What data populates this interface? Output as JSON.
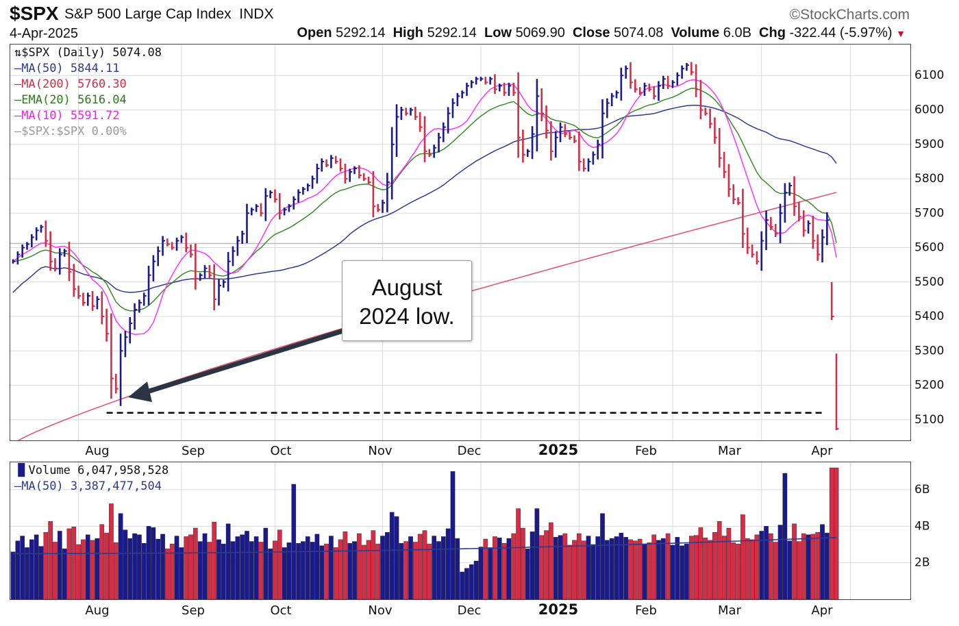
{
  "header": {
    "ticker": "$SPX",
    "index_name": "S&P 500 Large Cap Index",
    "exchange": "INDX",
    "brand": "©StockCharts.com",
    "date": "4-Apr-2025",
    "open_label": "Open",
    "open": "5292.14",
    "high_label": "High",
    "high": "5292.14",
    "low_label": "Low",
    "low": "5069.90",
    "close_label": "Close",
    "close": "5074.08",
    "volume_label": "Volume",
    "volume": "6.0B",
    "chg_label": "Chg",
    "chg": "-322.44 (-5.97%)"
  },
  "legend": {
    "price": "$SPX (Daily) 5074.08",
    "ma50": "MA(50) 5844.11",
    "ma200": "MA(200) 5760.30",
    "ema20": "EMA(20) 5616.04",
    "ma10": "MA(10) 5591.72",
    "ratio": "$SPX:$SPX 0.00%",
    "volume": "Volume 6,047,958,528",
    "vol_ma": "MA(50) 3,387,477,504"
  },
  "annotation": {
    "line1": "August",
    "line2": "2024 low."
  },
  "colors": {
    "up": "#1a1a8c",
    "down": "#d62c46",
    "ma50": "#2e3a8c",
    "ma200": "#e0506a",
    "ema20": "#3a8a2a",
    "ma10": "#ff33ff",
    "ratio": "#999999",
    "grid": "#d8d8d8"
  },
  "chart_data": [
    {
      "type": "candlestick",
      "title": "$SPX (Daily) 5074.08",
      "x_months": [
        "Aug",
        "Sep",
        "Oct",
        "Nov",
        "Dec",
        "2025",
        "Feb",
        "Mar",
        "Apr"
      ],
      "y_ticks": [
        5100,
        5200,
        5300,
        5400,
        5500,
        5600,
        5700,
        5800,
        5900,
        6000,
        6100
      ],
      "ylim": [
        5040,
        6190
      ],
      "reference_line": 5120,
      "closes": [
        5560,
        5580,
        5600,
        5610,
        5630,
        5650,
        5660,
        5620,
        5560,
        5540,
        5580,
        5590,
        5530,
        5480,
        5460,
        5440,
        5460,
        5430,
        5450,
        5400,
        5350,
        5220,
        5190,
        5300,
        5340,
        5380,
        5420,
        5440,
        5460,
        5520,
        5560,
        5590,
        5620,
        5610,
        5600,
        5620,
        5630,
        5600,
        5580,
        5510,
        5520,
        5540,
        5520,
        5450,
        5490,
        5500,
        5560,
        5590,
        5620,
        5640,
        5700,
        5710,
        5720,
        5700,
        5750,
        5760,
        5740,
        5700,
        5710,
        5720,
        5740,
        5760,
        5770,
        5780,
        5800,
        5830,
        5850,
        5840,
        5860,
        5850,
        5830,
        5800,
        5820,
        5830,
        5810,
        5800,
        5790,
        5720,
        5710,
        5730,
        5790,
        5900,
        5980,
        6000,
        5990,
        6000,
        5980,
        5950,
        5880,
        5870,
        5890,
        5920,
        5950,
        5990,
        6020,
        6040,
        6050,
        6070,
        6080,
        6090,
        6090,
        6080,
        6090,
        6060,
        6070,
        6050,
        6070,
        6050,
        5920,
        5870,
        5880,
        5930,
        6040,
        5990,
        5940,
        5880,
        5920,
        5950,
        5930,
        5920,
        5910,
        5850,
        5830,
        5850,
        5870,
        5900,
        5990,
        6020,
        6040,
        6050,
        6100,
        6120,
        6080,
        6060,
        6050,
        6070,
        6060,
        6040,
        6070,
        6090,
        6070,
        6080,
        6100,
        6120,
        6130,
        6110,
        6060,
        6000,
        5990,
        5960,
        5920,
        5860,
        5820,
        5770,
        5740,
        5730,
        5640,
        5600,
        5580,
        5560,
        5620,
        5680,
        5660,
        5640,
        5700,
        5760,
        5780,
        5720,
        5690,
        5650,
        5670,
        5620,
        5580,
        5630,
        5680,
        5400,
        5074
      ],
      "ma50_last": 5844.11,
      "ma200_last": 5760.3,
      "ema20_last": 5616.04,
      "ma10_last": 5591.72
    },
    {
      "type": "bar",
      "title": "Volume 6,047,958,528",
      "y_ticks": [
        "2B",
        "4B",
        "6B"
      ],
      "ylim": [
        0,
        7.5
      ],
      "unit": "billions",
      "ma50_last": 3.387
    }
  ]
}
